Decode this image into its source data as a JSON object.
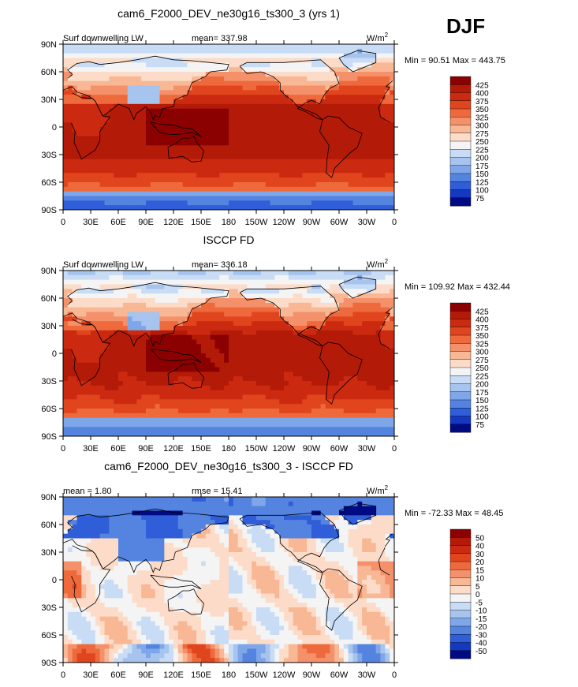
{
  "season": "DJF",
  "chart_data": [
    {
      "type": "heatmap",
      "title": "cam6_F2000_DEV_ne30g16_ts300_3 (yrs 1)",
      "left_label": "Surf downwelling LW",
      "center_label": "mean= 337.98",
      "units_base": "W/m",
      "units_exp": "2",
      "minmax": "Min =  90.51 Max = 443.75",
      "ylabels": [
        "90N",
        "60N",
        "30N",
        "0",
        "30S",
        "60S",
        "90S"
      ],
      "xlabels": [
        "0",
        "30E",
        "60E",
        "90E",
        "120E",
        "150E",
        "180",
        "150W",
        "120W",
        "90W",
        "60W",
        "30W",
        "0"
      ],
      "levels": [
        425,
        400,
        375,
        350,
        325,
        300,
        275,
        250,
        225,
        200,
        175,
        150,
        125,
        100,
        75
      ],
      "colors": [
        "#8b0000",
        "#b31a08",
        "#cc2a10",
        "#e0451e",
        "#ee6a3c",
        "#f4916a",
        "#f8b795",
        "#fcdcc8",
        "#f4f4f4",
        "#c8dcf5",
        "#a6c4ee",
        "#7ea6e8",
        "#5584e0",
        "#2f5ed8",
        "#1438c0",
        "#000a82"
      ]
    },
    {
      "type": "heatmap",
      "title": "ISCCP FD",
      "left_label": "Surf downwelling LW",
      "center_label": "mean= 336.18",
      "units_base": "W/m",
      "units_exp": "2",
      "minmax": "Min = 109.92 Max = 432.44",
      "ylabels": [
        "90N",
        "60N",
        "30N",
        "0",
        "30S",
        "60S",
        "90S"
      ],
      "xlabels": [
        "0",
        "30E",
        "60E",
        "90E",
        "120E",
        "150E",
        "180",
        "150W",
        "120W",
        "90W",
        "60W",
        "30W",
        "0"
      ],
      "levels": [
        425,
        400,
        375,
        350,
        325,
        300,
        275,
        250,
        225,
        200,
        175,
        150,
        125,
        100,
        75
      ],
      "colors": [
        "#8b0000",
        "#b31a08",
        "#cc2a10",
        "#e0451e",
        "#ee6a3c",
        "#f4916a",
        "#f8b795",
        "#fcdcc8",
        "#f4f4f4",
        "#c8dcf5",
        "#a6c4ee",
        "#7ea6e8",
        "#5584e0",
        "#2f5ed8",
        "#1438c0",
        "#000a82"
      ]
    },
    {
      "type": "heatmap",
      "title": "cam6_F2000_DEV_ne30g16_ts300_3 - ISCCP FD",
      "left_label": "mean =    1.80",
      "center_label": "rmse =   15.41",
      "units_base": "W/m",
      "units_exp": "2",
      "minmax": "Min = -72.33 Max =  48.45",
      "ylabels": [
        "90N",
        "60N",
        "30N",
        "0",
        "30S",
        "60S",
        "90S"
      ],
      "xlabels": [
        "0",
        "30E",
        "60E",
        "90E",
        "120E",
        "150E",
        "180",
        "150W",
        "120W",
        "90W",
        "60W",
        "30W",
        "0"
      ],
      "levels": [
        50,
        40,
        30,
        20,
        15,
        10,
        5,
        0,
        -5,
        -10,
        -15,
        -20,
        -30,
        -40,
        -50
      ],
      "colors": [
        "#8b0000",
        "#b31a08",
        "#cc2a10",
        "#e0451e",
        "#ee6a3c",
        "#f4916a",
        "#f8b795",
        "#fcdcc8",
        "#f4f4f4",
        "#c8dcf5",
        "#a6c4ee",
        "#7ea6e8",
        "#5584e0",
        "#2f5ed8",
        "#1438c0",
        "#000a82"
      ]
    }
  ]
}
